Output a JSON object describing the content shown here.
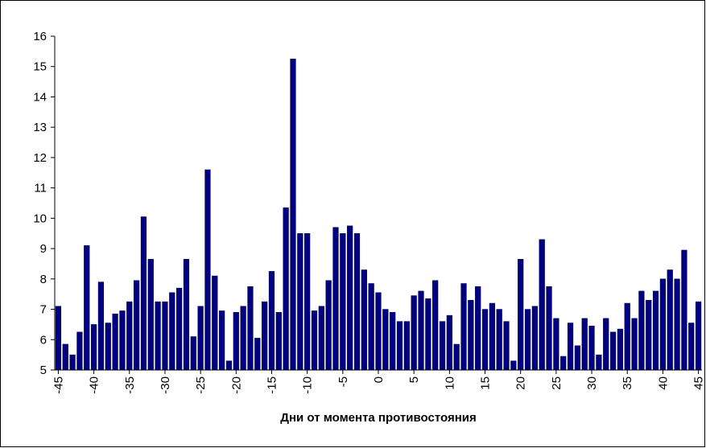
{
  "chart_data": {
    "type": "bar",
    "xlabel": "Дни от момента противостояния",
    "x": [
      -45,
      -44,
      -43,
      -42,
      -41,
      -40,
      -39,
      -38,
      -37,
      -36,
      -35,
      -34,
      -33,
      -32,
      -31,
      -30,
      -29,
      -28,
      -27,
      -26,
      -25,
      -24,
      -23,
      -22,
      -21,
      -20,
      -19,
      -18,
      -17,
      -16,
      -15,
      -14,
      -13,
      -12,
      -11,
      -10,
      -9,
      -8,
      -7,
      -6,
      -5,
      -4,
      -3,
      -2,
      -1,
      0,
      1,
      2,
      3,
      4,
      5,
      6,
      7,
      8,
      9,
      10,
      11,
      12,
      13,
      14,
      15,
      16,
      17,
      18,
      19,
      20,
      21,
      22,
      23,
      24,
      25,
      26,
      27,
      28,
      29,
      30,
      31,
      32,
      33,
      34,
      35,
      36,
      37,
      38,
      39,
      40,
      41,
      42,
      43,
      44,
      45
    ],
    "values": [
      7.1,
      5.85,
      5.5,
      6.25,
      9.1,
      6.5,
      7.9,
      6.55,
      6.85,
      6.95,
      7.25,
      7.95,
      10.05,
      8.65,
      7.25,
      7.25,
      7.55,
      7.7,
      8.65,
      6.1,
      7.1,
      11.6,
      8.1,
      6.95,
      5.3,
      6.9,
      7.1,
      7.75,
      6.05,
      7.25,
      8.25,
      6.9,
      10.35,
      15.25,
      9.5,
      9.5,
      6.95,
      7.1,
      7.95,
      9.7,
      9.5,
      9.75,
      9.5,
      8.3,
      7.85,
      7.55,
      7.0,
      6.9,
      6.6,
      6.6,
      7.45,
      7.6,
      7.35,
      7.95,
      6.6,
      6.8,
      5.85,
      7.85,
      7.3,
      7.75,
      7.0,
      7.2,
      7.0,
      6.6,
      5.3,
      8.65,
      7.0,
      7.1,
      9.3,
      7.75,
      6.7,
      5.45,
      6.55,
      5.8,
      6.7,
      6.45,
      5.5,
      6.7,
      6.25,
      6.35,
      7.2,
      6.7,
      7.6,
      7.3,
      7.6,
      8.0,
      8.3,
      8.0,
      8.95,
      6.55,
      7.25
    ],
    "color": "#000080",
    "xlim": [
      -45.5,
      45.5
    ],
    "xticks": [
      -45,
      -40,
      -35,
      -30,
      -25,
      -20,
      -15,
      -10,
      -5,
      0,
      5,
      10,
      15,
      20,
      25,
      30,
      35,
      40,
      45
    ],
    "ylim": [
      5,
      16
    ],
    "yticks": [
      5,
      6,
      7,
      8,
      9,
      10,
      11,
      12,
      13,
      14,
      15,
      16
    ],
    "grid": false
  }
}
